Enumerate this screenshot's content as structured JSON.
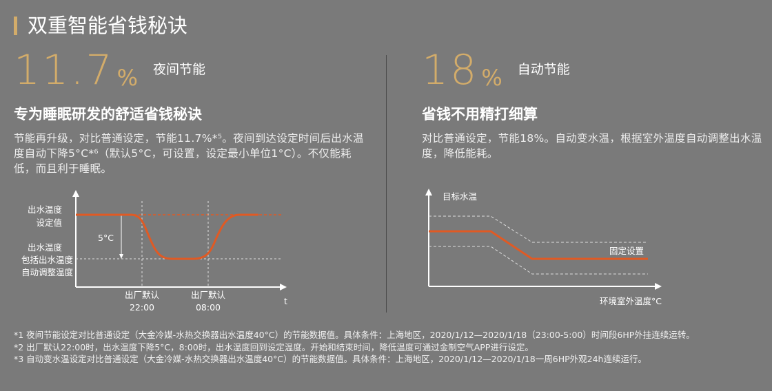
{
  "header": {
    "title": "双重智能省钱秘诀"
  },
  "left": {
    "stat_value": "11.7",
    "stat_unit": "%",
    "stat_label": "夜间节能",
    "sub_title": "专为睡眠研发的舒适省钱秘诀",
    "body": "节能再升级，对比普通设定，节能11.7%*⁵。夜间到达设定时间后出水温度自动下降5°C*⁶（默认5°C，可设置，设定最小单位1°C）。不仅能耗低，而且利于睡眠。",
    "chart": {
      "y_label_top_1": "出水温度",
      "y_label_top_2": "设定值",
      "y_label_bot_1": "出水温度",
      "y_label_bot_2": "包括出水温度",
      "y_label_bot_3": "自动调整温度",
      "drop_label": "5°C",
      "x_label_1a": "出厂默认",
      "x_label_1b": "22:00",
      "x_label_2a": "出厂默认",
      "x_label_2b": "08:00",
      "x_axis": "t"
    }
  },
  "right": {
    "stat_value": "18",
    "stat_unit": "%",
    "stat_label": "自动节能",
    "sub_title": "省钱不用精打细算",
    "body": "对比普通设定，节能18%。自动变水温，根据室外温度自动调整出水温度，降低能耗。",
    "chart": {
      "y_axis": "目标水温",
      "series_label": "固定设置",
      "x_axis": "环境室外温度°C"
    }
  },
  "footnotes": [
    "*1 夜间节能设定对比普通设定（大金冷媒-水热交换器出水温度40°C）的节能数据值。具体条件：上海地区，2020/1/12—2020/1/18（23:00-5:00）时间段6HP外挂连续运转。",
    "*2 出厂默认22:00时，出水温度下降5°C，8:00时，出水温度回到设定温度。开始和结束时间，降低温度可通过金制空气APP进行设定。",
    "*3 自动变水温设定对比普通设定（大金冷媒-水热交换器出水温度40°C）的节能数据值。具体条件：上海地区，2020/1/12—2020/1/18一周6HP外观24h连续运行。"
  ],
  "colors": {
    "accent": "#d3ac6a",
    "curve": "#e05a24",
    "background": "#7a7a7a"
  }
}
